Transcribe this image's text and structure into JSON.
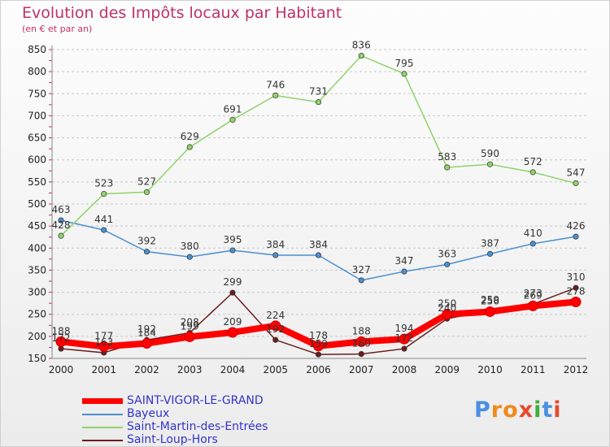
{
  "title": "Evolution des Impôts locaux par Habitant",
  "subtitle": "(en € et par an)",
  "logo": "Proxiti",
  "chart_data": {
    "type": "line",
    "title": "Evolution des Impôts locaux par Habitant",
    "ylabel": "(en € et par an)",
    "xlabel": "",
    "x": [
      "2000",
      "2001",
      "2002",
      "2003",
      "2004",
      "2005",
      "2006",
      "2007",
      "2008",
      "2009",
      "2010",
      "2011",
      "2012"
    ],
    "ylim": [
      150,
      850
    ],
    "yticks": [
      150,
      200,
      250,
      300,
      350,
      400,
      450,
      500,
      550,
      600,
      650,
      700,
      750,
      800,
      850
    ],
    "grid": "horizontal dashed",
    "legend": "bottom-left",
    "series": [
      {
        "name": "Saint-Loup-Hors",
        "color": "#6b1c1c",
        "values": [
          172,
          163,
          192,
          208,
          299,
          192,
          159,
          160,
          172,
          240,
          259,
          273,
          310
        ]
      },
      {
        "name": "Bayeux",
        "color": "#4a8fcf",
        "values": [
          463,
          441,
          392,
          380,
          395,
          384,
          384,
          327,
          347,
          363,
          387,
          410,
          426
        ]
      },
      {
        "name": "Saint-Martin-des-Entrées",
        "color": "#8fd36a",
        "values": [
          428,
          523,
          527,
          629,
          691,
          746,
          731,
          836,
          795,
          583,
          590,
          572,
          547
        ]
      },
      {
        "name": "SAINT-VIGOR-LE-GRAND",
        "color": "#ff0000",
        "values": [
          188,
          177,
          184,
          199,
          209,
          224,
          178,
          188,
          194,
          250,
          256,
          269,
          278
        ]
      }
    ]
  },
  "legend": [
    {
      "label": "SAINT-VIGOR-LE-GRAND",
      "color": "#ff0000"
    },
    {
      "label": "Bayeux",
      "color": "#4a8fcf"
    },
    {
      "label": "Saint-Martin-des-Entrées",
      "color": "#8fd36a"
    },
    {
      "label": "Saint-Loup-Hors",
      "color": "#6b1c1c"
    }
  ]
}
